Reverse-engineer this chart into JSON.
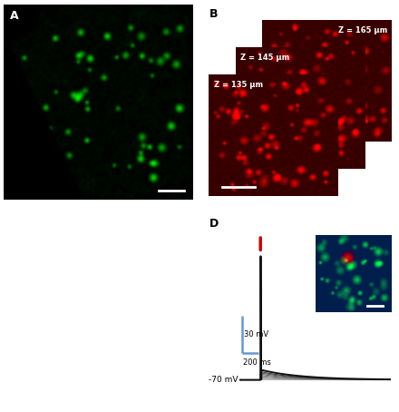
{
  "panel_A_label": "A",
  "panel_B_label": "B",
  "panel_D_label": "D",
  "z_labels": [
    "Z = 135 μm",
    "Z = 145 μm",
    "Z = 165 μm"
  ],
  "scale_text_y": "30 mV",
  "scale_text_x": "200 ms",
  "vm_label": "-70 mV",
  "red_tick_color": "#cc0000",
  "background_color": "#ffffff",
  "label_fontsize": 9,
  "scalebar_lw": 1.5
}
